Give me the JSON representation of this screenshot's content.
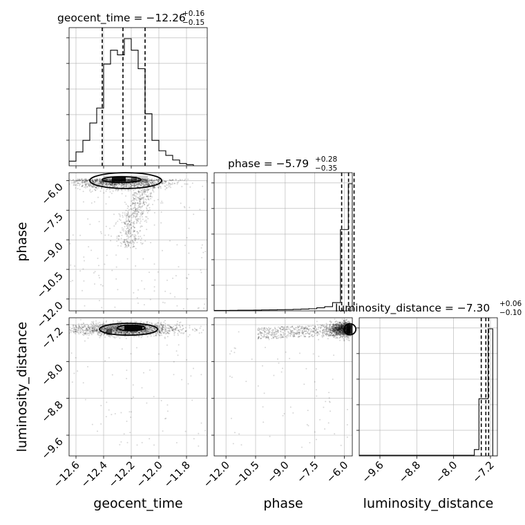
{
  "chart_data": {
    "type": "corner",
    "parameters": [
      "geocent_time",
      "phase",
      "luminosity_distance"
    ],
    "titles": [
      {
        "param": "geocent_time",
        "label": "geocent_time = −12.26",
        "plus": "+0.16",
        "minus": "−0.15"
      },
      {
        "param": "phase",
        "label": "phase = −5.79",
        "plus": "+0.28",
        "minus": "−0.35"
      },
      {
        "param": "luminosity_distance",
        "label": "luminosity_distance = −7.30",
        "plus": "+0.06",
        "minus": "−0.10"
      }
    ],
    "axes": {
      "geocent_time": {
        "range": [
          -12.65,
          -11.65
        ],
        "ticks": [
          -12.6,
          -12.4,
          -12.2,
          -12.0,
          -11.8
        ],
        "tick_labels": [
          "−12.6",
          "−12.4",
          "−12.2",
          "−12.0",
          "−11.8"
        ]
      },
      "phase": {
        "range": [
          -12.6,
          -5.6
        ],
        "ticks": [
          -12.0,
          -10.5,
          -9.0,
          -7.5,
          -6.0
        ],
        "tick_labels": [
          "−12.0",
          "−10.5",
          "−9.0",
          "−7.5",
          "−6.0"
        ]
      },
      "luminosity_distance": {
        "range": [
          -10.05,
          -7.05
        ],
        "ticks": [
          -9.6,
          -8.8,
          -8.0,
          -7.2
        ],
        "tick_labels": [
          "−9.6",
          "−8.8",
          "−8.0",
          "−7.2"
        ]
      }
    },
    "quantiles": {
      "geocent_time": [
        -12.41,
        -12.26,
        -12.1
      ],
      "phase": [
        -6.14,
        -5.79,
        -5.51
      ],
      "luminosity_distance": [
        -7.4,
        -7.3,
        -7.24
      ]
    },
    "histograms": {
      "geocent_time": {
        "bin_edges": [
          -12.65,
          -12.6,
          -12.55,
          -12.5,
          -12.45,
          -12.4,
          -12.35,
          -12.3,
          -12.25,
          -12.2,
          -12.15,
          -12.1,
          -12.05,
          -12.0,
          -11.95,
          -11.9,
          -11.85,
          -11.8,
          -11.75
        ],
        "counts": [
          4,
          12,
          22,
          37,
          50,
          88,
          100,
          96,
          110,
          100,
          84,
          45,
          22,
          13,
          9,
          5,
          2,
          1
        ]
      },
      "phase": {
        "bin_edges": [
          -12.6,
          -12.2,
          -11.8,
          -11.4,
          -11.0,
          -10.6,
          -10.2,
          -9.8,
          -9.4,
          -9.0,
          -8.6,
          -8.2,
          -7.8,
          -7.4,
          -7.0,
          -6.6,
          -6.2,
          -5.8,
          -5.6
        ],
        "counts": [
          0.3,
          0.3,
          0.4,
          0.5,
          0.5,
          0.6,
          0.7,
          0.8,
          0.9,
          1.0,
          1.2,
          1.4,
          1.7,
          2.4,
          3.3,
          6.5,
          64,
          100
        ]
      },
      "luminosity_distance": {
        "bin_edges": [
          -10.05,
          -7.55,
          -7.45,
          -7.35,
          -7.25,
          -7.15,
          -7.05
        ],
        "counts": [
          0.5,
          5,
          45,
          45,
          100,
          0
        ]
      }
    },
    "xlabels": [
      "geocent_time",
      "phase",
      "luminosity_distance"
    ],
    "ylabels": [
      "phase",
      "luminosity_distance"
    ],
    "grid": true
  }
}
